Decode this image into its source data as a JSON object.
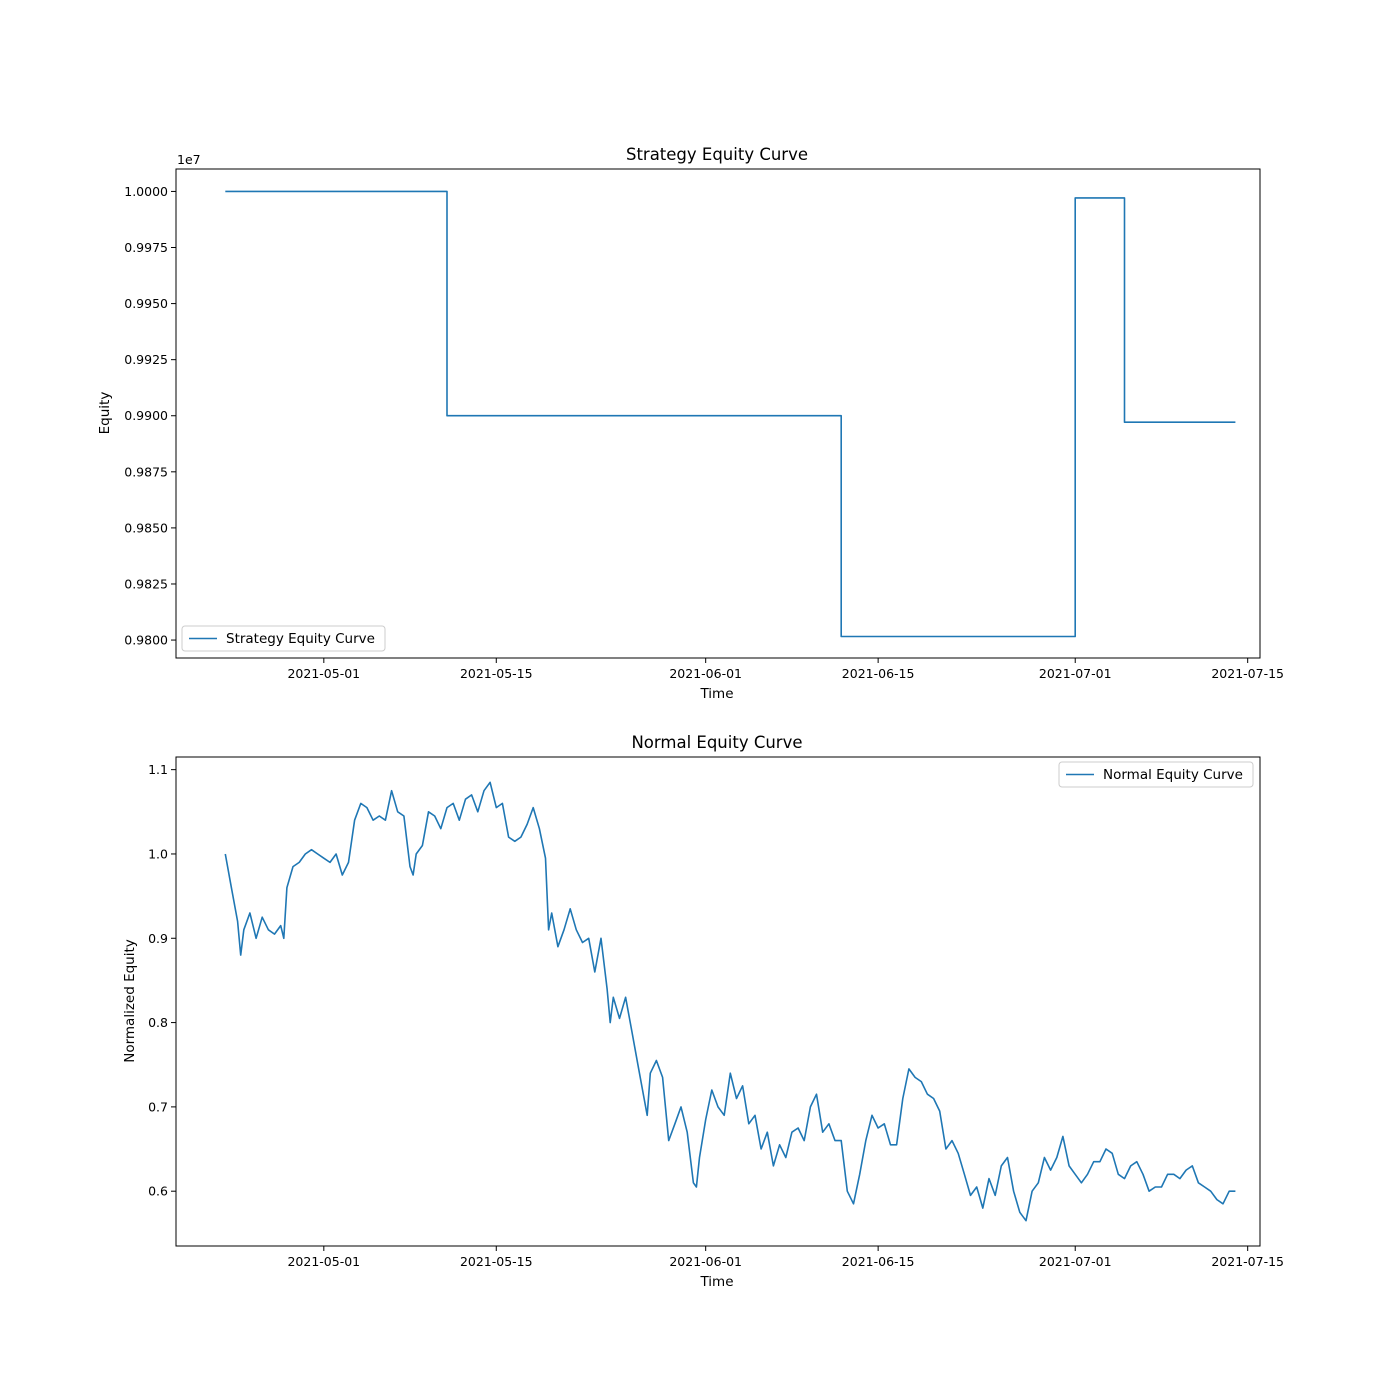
{
  "chart_data": [
    {
      "type": "line",
      "title": "Strategy Equity Curve",
      "xlabel": "Time",
      "ylabel": "Equity",
      "y_multiplier_label": "1e7",
      "xlim": [
        "2021-04-19",
        "2021-07-16"
      ],
      "ylim": [
        0.9792,
        1.001
      ],
      "x_ticks": [
        "2021-05-01",
        "2021-05-15",
        "2021-06-01",
        "2021-06-15",
        "2021-07-01",
        "2021-07-15"
      ],
      "y_ticks": [
        "0.9800",
        "0.9825",
        "0.9850",
        "0.9875",
        "0.9900",
        "0.9925",
        "0.9950",
        "0.9975",
        "1.0000"
      ],
      "legend_position": "lower-left",
      "grid": false,
      "series": [
        {
          "name": "Strategy Equity Curve",
          "color": "#1f77b4",
          "points": [
            [
              "2021-04-23",
              1.0
            ],
            [
              "2021-05-11",
              1.0
            ],
            [
              "2021-05-11",
              0.99
            ],
            [
              "2021-06-12",
              0.99
            ],
            [
              "2021-06-12",
              0.98016
            ],
            [
              "2021-07-01",
              0.98016
            ],
            [
              "2021-07-01",
              0.99971
            ],
            [
              "2021-07-05",
              0.99971
            ],
            [
              "2021-07-05",
              0.98971
            ],
            [
              "2021-07-14",
              0.98971
            ]
          ]
        }
      ]
    },
    {
      "type": "line",
      "title": "Normal Equity Curve",
      "xlabel": "Time",
      "ylabel": "Normalized Equity",
      "xlim": [
        "2021-04-19",
        "2021-07-16"
      ],
      "ylim": [
        0.535,
        1.115
      ],
      "x_ticks": [
        "2021-05-01",
        "2021-05-15",
        "2021-06-01",
        "2021-06-15",
        "2021-07-01",
        "2021-07-15"
      ],
      "y_ticks": [
        "0.6",
        "0.7",
        "0.8",
        "0.9",
        "1.0",
        "1.1"
      ],
      "legend_position": "upper-right",
      "grid": false,
      "series": [
        {
          "name": "Normal Equity Curve",
          "color": "#1f77b4",
          "points": [
            [
              "2021-04-23",
              1.0
            ],
            [
              "2021-04-23T12",
              0.96
            ],
            [
              "2021-04-24",
              0.92
            ],
            [
              "2021-04-24T06",
              0.88
            ],
            [
              "2021-04-24T12",
              0.91
            ],
            [
              "2021-04-25",
              0.93
            ],
            [
              "2021-04-25T12",
              0.9
            ],
            [
              "2021-04-26",
              0.925
            ],
            [
              "2021-04-26T12",
              0.91
            ],
            [
              "2021-04-27",
              0.905
            ],
            [
              "2021-04-27T12",
              0.915
            ],
            [
              "2021-04-27T18",
              0.9
            ],
            [
              "2021-04-28",
              0.96
            ],
            [
              "2021-04-28T12",
              0.985
            ],
            [
              "2021-04-29",
              0.99
            ],
            [
              "2021-04-29T12",
              1.0
            ],
            [
              "2021-04-30",
              1.005
            ],
            [
              "2021-04-30T12",
              1.0
            ],
            [
              "2021-05-01",
              0.995
            ],
            [
              "2021-05-01T12",
              0.99
            ],
            [
              "2021-05-02",
              1.0
            ],
            [
              "2021-05-02T12",
              0.975
            ],
            [
              "2021-05-03",
              0.99
            ],
            [
              "2021-05-03T12",
              1.04
            ],
            [
              "2021-05-04",
              1.06
            ],
            [
              "2021-05-04T12",
              1.055
            ],
            [
              "2021-05-05",
              1.04
            ],
            [
              "2021-05-05T12",
              1.045
            ],
            [
              "2021-05-06",
              1.04
            ],
            [
              "2021-05-06T12",
              1.075
            ],
            [
              "2021-05-07",
              1.05
            ],
            [
              "2021-05-07T12",
              1.045
            ],
            [
              "2021-05-08",
              0.985
            ],
            [
              "2021-05-08T06",
              0.975
            ],
            [
              "2021-05-08T12",
              1.0
            ],
            [
              "2021-05-09",
              1.01
            ],
            [
              "2021-05-09T12",
              1.05
            ],
            [
              "2021-05-10",
              1.045
            ],
            [
              "2021-05-10T12",
              1.03
            ],
            [
              "2021-05-11",
              1.055
            ],
            [
              "2021-05-11T12",
              1.06
            ],
            [
              "2021-05-12",
              1.04
            ],
            [
              "2021-05-12T12",
              1.065
            ],
            [
              "2021-05-13",
              1.07
            ],
            [
              "2021-05-13T12",
              1.05
            ],
            [
              "2021-05-14",
              1.075
            ],
            [
              "2021-05-14T12",
              1.085
            ],
            [
              "2021-05-15",
              1.055
            ],
            [
              "2021-05-15T12",
              1.06
            ],
            [
              "2021-05-16",
              1.02
            ],
            [
              "2021-05-16T12",
              1.015
            ],
            [
              "2021-05-17",
              1.02
            ],
            [
              "2021-05-17T12",
              1.035
            ],
            [
              "2021-05-18",
              1.055
            ],
            [
              "2021-05-18T12",
              1.03
            ],
            [
              "2021-05-19",
              0.995
            ],
            [
              "2021-05-19T06",
              0.91
            ],
            [
              "2021-05-19T12",
              0.93
            ],
            [
              "2021-05-20",
              0.89
            ],
            [
              "2021-05-20T12",
              0.91
            ],
            [
              "2021-05-21",
              0.935
            ],
            [
              "2021-05-21T12",
              0.91
            ],
            [
              "2021-05-22",
              0.895
            ],
            [
              "2021-05-22T12",
              0.9
            ],
            [
              "2021-05-23",
              0.86
            ],
            [
              "2021-05-23T12",
              0.9
            ],
            [
              "2021-05-24",
              0.84
            ],
            [
              "2021-05-24T06",
              0.8
            ],
            [
              "2021-05-24T12",
              0.83
            ],
            [
              "2021-05-25",
              0.805
            ],
            [
              "2021-05-25T12",
              0.83
            ],
            [
              "2021-05-26",
              0.79
            ],
            [
              "2021-05-26T12",
              0.75
            ],
            [
              "2021-05-27",
              0.71
            ],
            [
              "2021-05-27T06",
              0.69
            ],
            [
              "2021-05-27T12",
              0.74
            ],
            [
              "2021-05-28",
              0.755
            ],
            [
              "2021-05-28T12",
              0.735
            ],
            [
              "2021-05-29",
              0.66
            ],
            [
              "2021-05-29T12",
              0.68
            ],
            [
              "2021-05-30",
              0.7
            ],
            [
              "2021-05-30T12",
              0.67
            ],
            [
              "2021-05-31",
              0.61
            ],
            [
              "2021-05-31T06",
              0.605
            ],
            [
              "2021-05-31T12",
              0.64
            ],
            [
              "2021-06-01",
              0.685
            ],
            [
              "2021-06-01T12",
              0.72
            ],
            [
              "2021-06-02",
              0.7
            ],
            [
              "2021-06-02T12",
              0.69
            ],
            [
              "2021-06-03",
              0.74
            ],
            [
              "2021-06-03T12",
              0.71
            ],
            [
              "2021-06-04",
              0.725
            ],
            [
              "2021-06-04T12",
              0.68
            ],
            [
              "2021-06-05",
              0.69
            ],
            [
              "2021-06-05T12",
              0.65
            ],
            [
              "2021-06-06",
              0.67
            ],
            [
              "2021-06-06T12",
              0.63
            ],
            [
              "2021-06-07",
              0.655
            ],
            [
              "2021-06-07T12",
              0.64
            ],
            [
              "2021-06-08",
              0.67
            ],
            [
              "2021-06-08T12",
              0.675
            ],
            [
              "2021-06-09",
              0.66
            ],
            [
              "2021-06-09T12",
              0.7
            ],
            [
              "2021-06-10",
              0.715
            ],
            [
              "2021-06-10T12",
              0.67
            ],
            [
              "2021-06-11",
              0.68
            ],
            [
              "2021-06-11T12",
              0.66
            ],
            [
              "2021-06-12",
              0.66
            ],
            [
              "2021-06-12T12",
              0.6
            ],
            [
              "2021-06-13",
              0.585
            ],
            [
              "2021-06-13T12",
              0.62
            ],
            [
              "2021-06-14",
              0.66
            ],
            [
              "2021-06-14T12",
              0.69
            ],
            [
              "2021-06-15",
              0.675
            ],
            [
              "2021-06-15T12",
              0.68
            ],
            [
              "2021-06-16",
              0.655
            ],
            [
              "2021-06-16T12",
              0.655
            ],
            [
              "2021-06-17",
              0.71
            ],
            [
              "2021-06-17T12",
              0.745
            ],
            [
              "2021-06-18",
              0.735
            ],
            [
              "2021-06-18T12",
              0.73
            ],
            [
              "2021-06-19",
              0.715
            ],
            [
              "2021-06-19T12",
              0.71
            ],
            [
              "2021-06-20",
              0.695
            ],
            [
              "2021-06-20T12",
              0.65
            ],
            [
              "2021-06-21",
              0.66
            ],
            [
              "2021-06-21T12",
              0.645
            ],
            [
              "2021-06-22",
              0.62
            ],
            [
              "2021-06-22T12",
              0.595
            ],
            [
              "2021-06-23",
              0.605
            ],
            [
              "2021-06-23T12",
              0.58
            ],
            [
              "2021-06-24",
              0.615
            ],
            [
              "2021-06-24T12",
              0.595
            ],
            [
              "2021-06-25",
              0.63
            ],
            [
              "2021-06-25T12",
              0.64
            ],
            [
              "2021-06-26",
              0.6
            ],
            [
              "2021-06-26T12",
              0.575
            ],
            [
              "2021-06-27",
              0.565
            ],
            [
              "2021-06-27T12",
              0.6
            ],
            [
              "2021-06-28",
              0.61
            ],
            [
              "2021-06-28T12",
              0.64
            ],
            [
              "2021-06-29",
              0.625
            ],
            [
              "2021-06-29T12",
              0.64
            ],
            [
              "2021-06-30",
              0.665
            ],
            [
              "2021-06-30T12",
              0.63
            ],
            [
              "2021-07-01",
              0.62
            ],
            [
              "2021-07-01T12",
              0.61
            ],
            [
              "2021-07-02",
              0.62
            ],
            [
              "2021-07-02T12",
              0.635
            ],
            [
              "2021-07-03",
              0.635
            ],
            [
              "2021-07-03T12",
              0.65
            ],
            [
              "2021-07-04",
              0.645
            ],
            [
              "2021-07-04T12",
              0.62
            ],
            [
              "2021-07-05",
              0.615
            ],
            [
              "2021-07-05T12",
              0.63
            ],
            [
              "2021-07-06",
              0.635
            ],
            [
              "2021-07-06T12",
              0.62
            ],
            [
              "2021-07-07",
              0.6
            ],
            [
              "2021-07-07T12",
              0.605
            ],
            [
              "2021-07-08",
              0.605
            ],
            [
              "2021-07-08T12",
              0.62
            ],
            [
              "2021-07-09",
              0.62
            ],
            [
              "2021-07-09T12",
              0.615
            ],
            [
              "2021-07-10",
              0.625
            ],
            [
              "2021-07-10T12",
              0.63
            ],
            [
              "2021-07-11",
              0.61
            ],
            [
              "2021-07-11T12",
              0.605
            ],
            [
              "2021-07-12",
              0.6
            ],
            [
              "2021-07-12T12",
              0.59
            ],
            [
              "2021-07-13",
              0.585
            ],
            [
              "2021-07-13T12",
              0.6
            ],
            [
              "2021-07-14",
              0.6
            ]
          ]
        }
      ]
    }
  ]
}
